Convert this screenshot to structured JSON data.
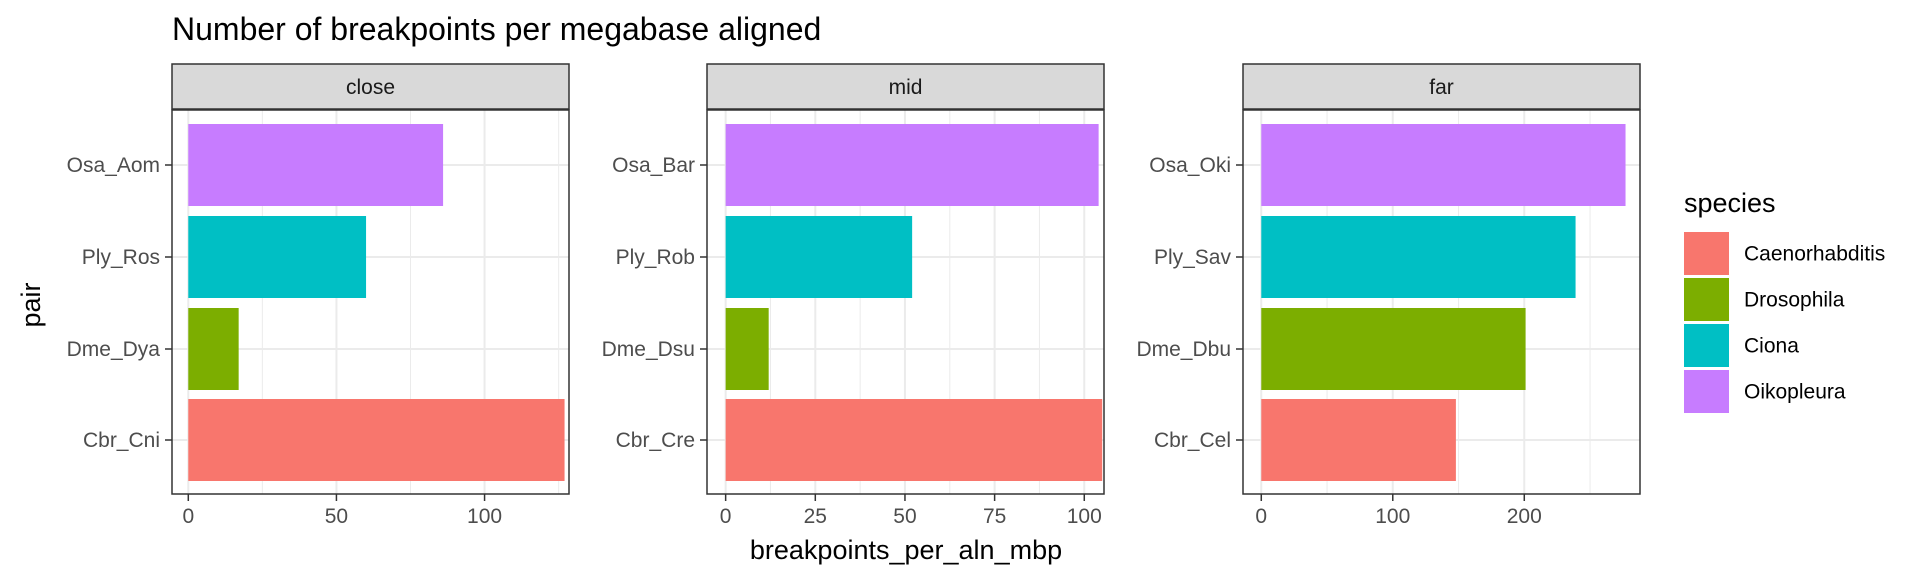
{
  "chart_data": {
    "type": "bar",
    "orientation": "horizontal",
    "title": "Number of breakpoints per megabase aligned",
    "xlabel": "breakpoints_per_aln_mbp",
    "ylabel": "pair",
    "grid": true,
    "legend": {
      "title": "species",
      "placement": "right",
      "entries": [
        {
          "name": "Caenorhabditis",
          "color": "#F8766D"
        },
        {
          "name": "Drosophila",
          "color": "#7CAE00"
        },
        {
          "name": "Ciona",
          "color": "#00BFC4"
        },
        {
          "name": "Oikopleura",
          "color": "#C77CFF"
        }
      ]
    },
    "facets": [
      {
        "label": "close",
        "xlim": [
          -5.5,
          128.5
        ],
        "xticks": [
          0,
          50,
          100
        ],
        "bars": [
          {
            "pair": "Osa_Aom",
            "species": "Oikopleura",
            "value": 86
          },
          {
            "pair": "Ply_Ros",
            "species": "Ciona",
            "value": 60
          },
          {
            "pair": "Dme_Dya",
            "species": "Drosophila",
            "value": 17
          },
          {
            "pair": "Cbr_Cni",
            "species": "Caenorhabditis",
            "value": 127
          }
        ]
      },
      {
        "label": "mid",
        "xlim": [
          -5.2,
          105.5
        ],
        "xticks": [
          0,
          25,
          50,
          75,
          100
        ],
        "bars": [
          {
            "pair": "Osa_Bar",
            "species": "Oikopleura",
            "value": 104
          },
          {
            "pair": "Ply_Rob",
            "species": "Ciona",
            "value": 52
          },
          {
            "pair": "Dme_Dsu",
            "species": "Drosophila",
            "value": 12
          },
          {
            "pair": "Cbr_Cre",
            "species": "Caenorhabditis",
            "value": 105
          }
        ]
      },
      {
        "label": "far",
        "xlim": [
          -13.9,
          288
        ],
        "xticks": [
          0,
          100,
          200
        ],
        "bars": [
          {
            "pair": "Osa_Oki",
            "species": "Oikopleura",
            "value": 277
          },
          {
            "pair": "Ply_Sav",
            "species": "Ciona",
            "value": 239
          },
          {
            "pair": "Dme_Dbu",
            "species": "Drosophila",
            "value": 201
          },
          {
            "pair": "Cbr_Cel",
            "species": "Caenorhabditis",
            "value": 148
          }
        ]
      }
    ]
  }
}
